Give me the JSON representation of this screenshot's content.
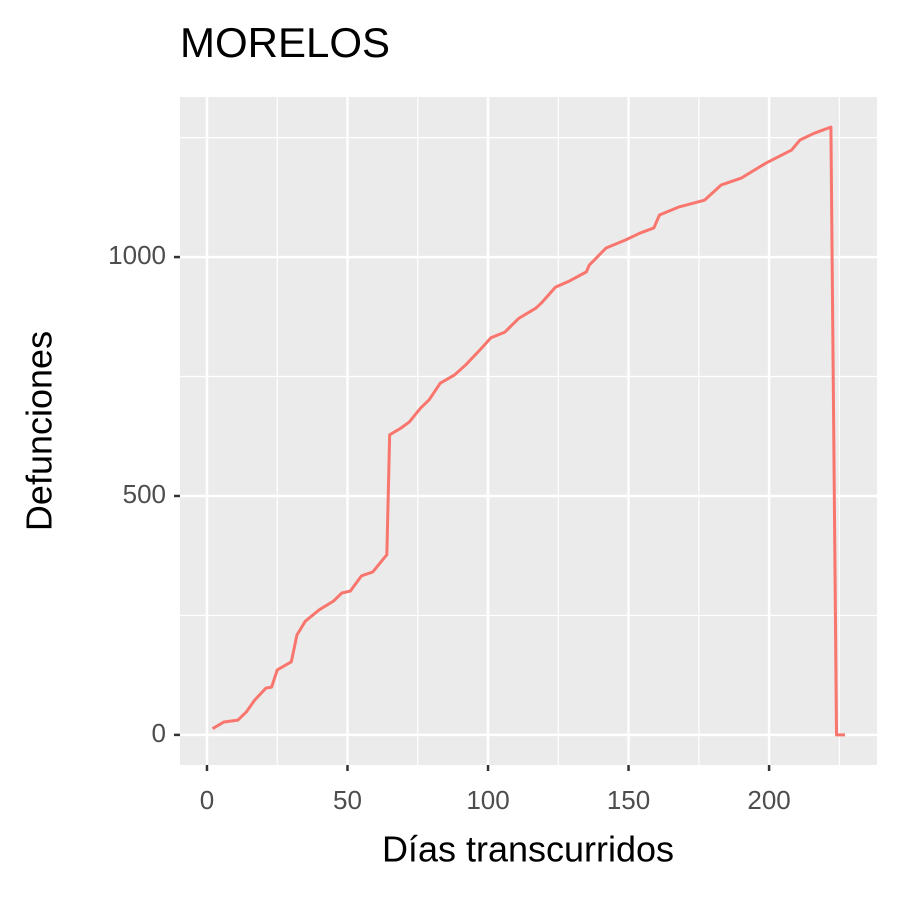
{
  "chart_data": {
    "type": "line",
    "title": "MORELOS",
    "x_label": "Días transcurridos",
    "y_label": "Defunciones",
    "x": [
      2,
      6,
      11,
      14,
      17,
      21,
      23,
      25,
      30,
      32,
      35,
      40,
      45,
      48,
      51,
      55,
      59,
      63,
      64,
      65,
      69,
      72,
      76,
      79,
      83,
      88,
      92,
      97,
      101,
      106,
      111,
      117,
      119,
      124,
      129,
      135,
      136,
      142,
      149,
      154,
      159,
      161,
      168,
      177,
      183,
      190,
      199,
      208,
      211,
      216,
      222,
      224,
      227
    ],
    "series": [
      {
        "name": "Defunciones",
        "color": "#F8766D",
        "values": [
          13,
          27,
          31,
          48,
          73,
          98,
          100,
          136,
          153,
          209,
          238,
          262,
          280,
          297,
          301,
          333,
          341,
          370,
          377,
          628,
          642,
          655,
          684,
          701,
          736,
          753,
          774,
          805,
          831,
          843,
          872,
          893,
          904,
          937,
          950,
          969,
          983,
          1019,
          1036,
          1050,
          1061,
          1088,
          1105,
          1119,
          1151,
          1165,
          1197,
          1224,
          1245,
          1259,
          1272,
          0,
          0
        ]
      }
    ],
    "xlim": [
      -9.6,
      238.4
    ],
    "xticks": [
      0,
      50,
      100,
      150,
      200
    ],
    "xminor": [
      25,
      75,
      125,
      175,
      225
    ],
    "ylim": [
      -63,
      1335
    ],
    "yticks": [
      0,
      500,
      1000
    ],
    "yminor": [
      250,
      750,
      1250
    ],
    "grid": true
  }
}
